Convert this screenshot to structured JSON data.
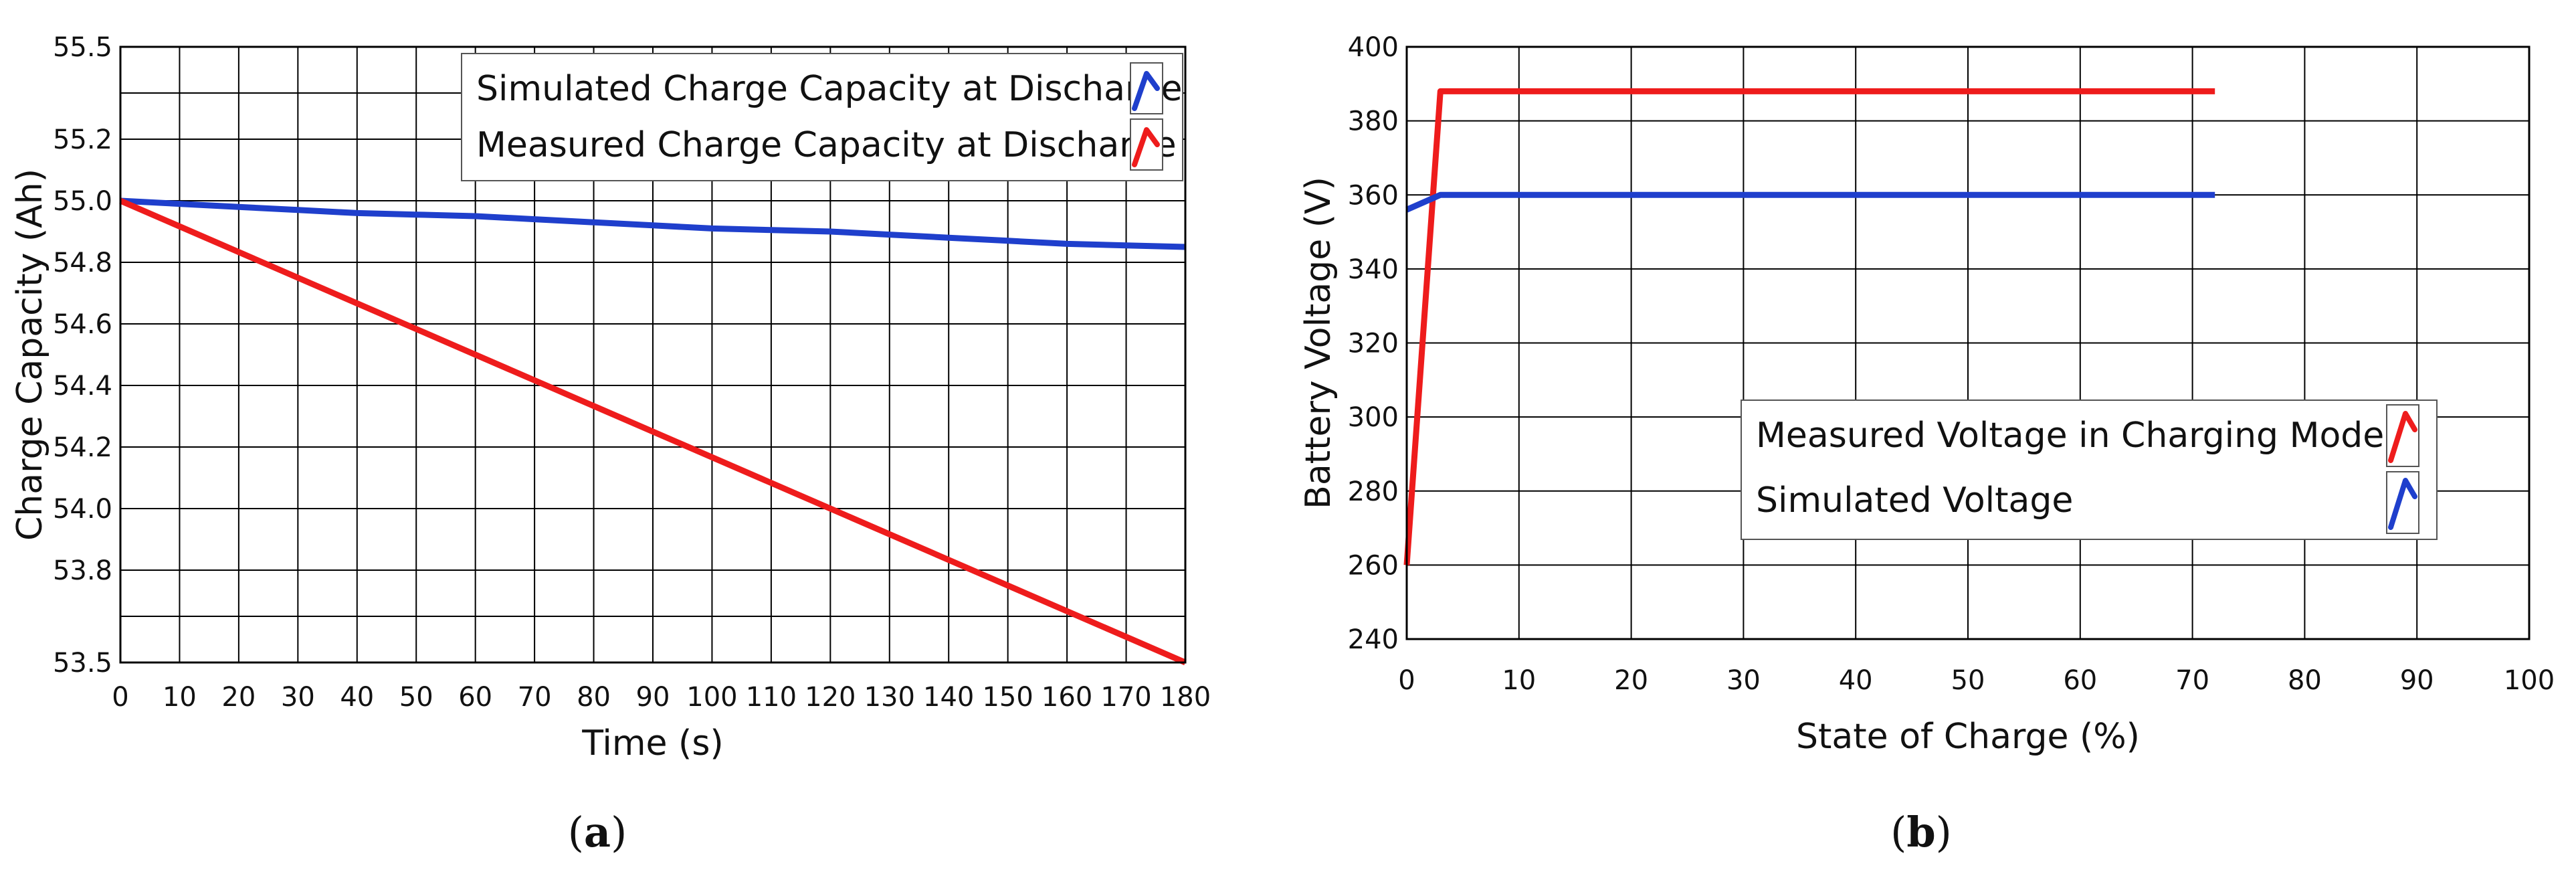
{
  "chart_data": [
    {
      "type": "line",
      "panel_label": "a",
      "xlabel": "Time (s)",
      "ylabel": "Charge Capacity (Ah)",
      "xlim": [
        0,
        180
      ],
      "ylim": [
        53.5,
        55.5
      ],
      "x_ticks": [
        0,
        10,
        20,
        30,
        40,
        50,
        60,
        70,
        80,
        90,
        100,
        110,
        120,
        130,
        140,
        150,
        160,
        170,
        180
      ],
      "y_ticks": [
        {
          "value": 53.5,
          "label": "53.5"
        },
        {
          "value": 53.8,
          "label": "53.8"
        },
        {
          "value": 54.0,
          "label": "54.0"
        },
        {
          "value": 54.2,
          "label": "54.2"
        },
        {
          "value": 54.4,
          "label": "54.4"
        },
        {
          "value": 54.6,
          "label": "54.6"
        },
        {
          "value": 54.8,
          "label": "54.8"
        },
        {
          "value": 55.0,
          "label": "55.0"
        },
        {
          "value": 55.2,
          "label": "55.2"
        },
        {
          "value": 55.5,
          "label": "55.5"
        }
      ],
      "extra_gridlines_y": [
        53.65,
        55.35
      ],
      "grid": true,
      "legend_position": "top-right",
      "series": [
        {
          "name": "Simulated Charge Capacity at Discharge",
          "color": "#1f3fcc",
          "x": [
            0,
            10,
            20,
            30,
            40,
            50,
            60,
            70,
            80,
            90,
            100,
            110,
            120,
            130,
            140,
            150,
            160,
            170,
            180
          ],
          "y": [
            55.0,
            54.99,
            54.98,
            54.97,
            54.96,
            54.955,
            54.95,
            54.94,
            54.93,
            54.92,
            54.91,
            54.905,
            54.9,
            54.89,
            54.88,
            54.87,
            54.86,
            54.855,
            54.85
          ]
        },
        {
          "name": "Measured Charge Capacity at Discharge",
          "color": "#ee1c1c",
          "x": [
            0,
            180
          ],
          "y": [
            55.0,
            53.5
          ]
        }
      ]
    },
    {
      "type": "line",
      "panel_label": "b",
      "xlabel": "State of Charge (%)",
      "ylabel": "Battery Voltage (V)",
      "xlim": [
        0,
        100
      ],
      "ylim": [
        240,
        400
      ],
      "x_ticks": [
        0,
        10,
        20,
        30,
        40,
        50,
        60,
        70,
        80,
        90,
        100
      ],
      "y_ticks": [
        {
          "value": 240,
          "label": "240"
        },
        {
          "value": 260,
          "label": "260"
        },
        {
          "value": 280,
          "label": "280"
        },
        {
          "value": 300,
          "label": "300"
        },
        {
          "value": 320,
          "label": "320"
        },
        {
          "value": 340,
          "label": "340"
        },
        {
          "value": 360,
          "label": "360"
        },
        {
          "value": 380,
          "label": "380"
        },
        {
          "value": 400,
          "label": "400"
        }
      ],
      "grid": true,
      "legend_position": "center-right",
      "series": [
        {
          "name": "Measured Voltage in Charging Mode",
          "color": "#ee1c1c",
          "x": [
            0,
            3,
            72
          ],
          "y": [
            260,
            388,
            388
          ]
        },
        {
          "name": "Simulated Voltage",
          "color": "#1f3fcc",
          "x": [
            0,
            3,
            72
          ],
          "y": [
            356,
            360,
            360
          ]
        }
      ]
    }
  ]
}
